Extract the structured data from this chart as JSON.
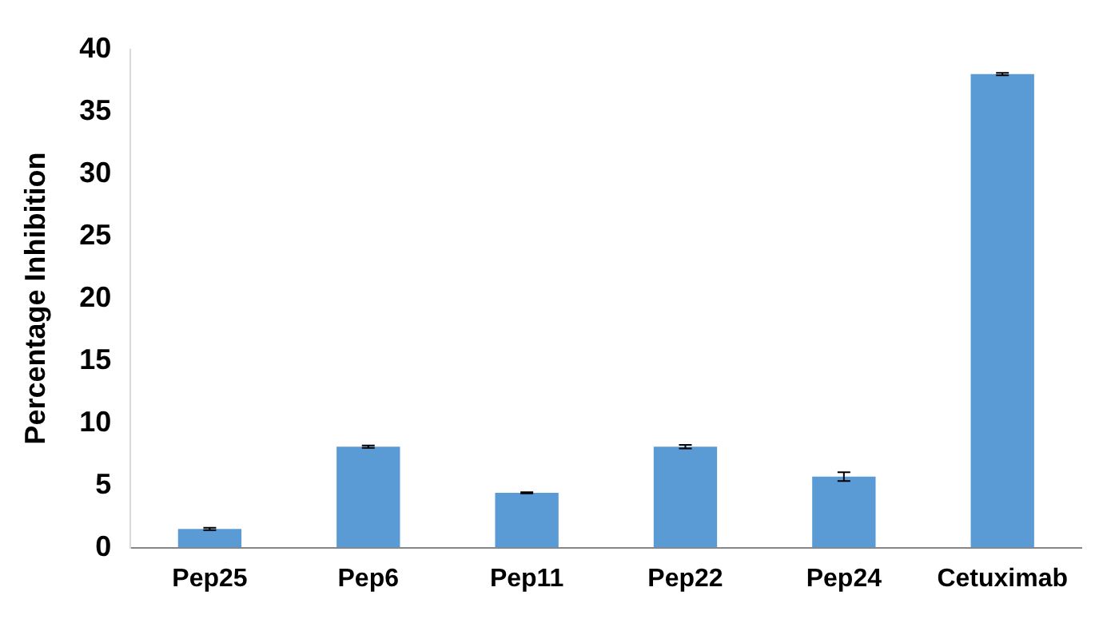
{
  "chart_data": {
    "type": "bar",
    "ylabel": "Percentage Inhibition",
    "categories": [
      "Pep25",
      "Pep6",
      "Pep11",
      "Pep22",
      "Pep24",
      "Cetuximab"
    ],
    "values": [
      1.5,
      8.1,
      4.4,
      8.1,
      5.7,
      38.0
    ],
    "errors": [
      0.1,
      0.1,
      0.05,
      0.15,
      0.35,
      0.1
    ],
    "color": "#5b9bd5",
    "ylim": [
      0,
      40
    ],
    "yticks": [
      0,
      5,
      10,
      15,
      20,
      25,
      30,
      35,
      40
    ],
    "grid": false,
    "legend": false
  }
}
